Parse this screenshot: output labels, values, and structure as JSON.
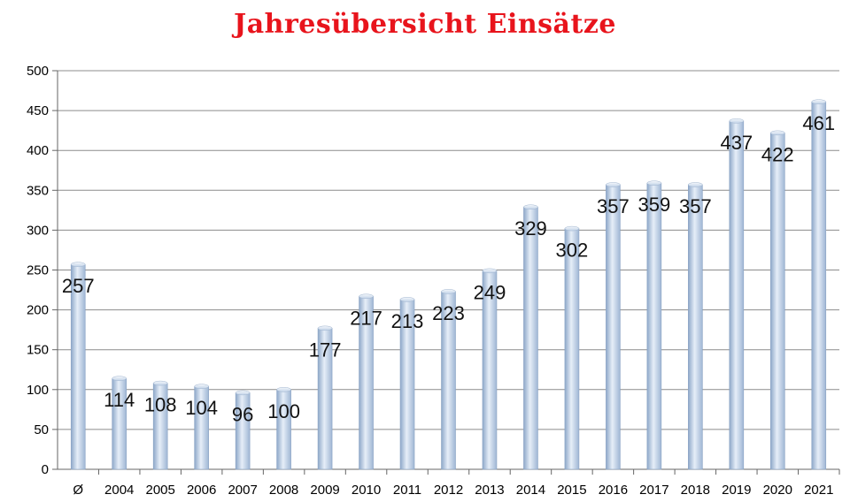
{
  "chart_data": {
    "type": "bar",
    "title": "Jahresübersicht Einsätze",
    "categories": [
      "Ø",
      "2004",
      "2005",
      "2006",
      "2007",
      "2008",
      "2009",
      "2010",
      "2011",
      "2012",
      "2013",
      "2014",
      "2015",
      "2016",
      "2017",
      "2018",
      "2019",
      "2020",
      "2021"
    ],
    "values": [
      257,
      114,
      108,
      104,
      96,
      100,
      177,
      217,
      213,
      223,
      249,
      329,
      302,
      357,
      359,
      357,
      437,
      422,
      461
    ],
    "xlabel": "",
    "ylabel": "",
    "ylim": [
      0,
      500
    ],
    "yticks": [
      0,
      50,
      100,
      150,
      200,
      250,
      300,
      350,
      400,
      450,
      500
    ],
    "grid": true,
    "bar_color": "#b9cde6",
    "title_color": "#e8141c"
  }
}
